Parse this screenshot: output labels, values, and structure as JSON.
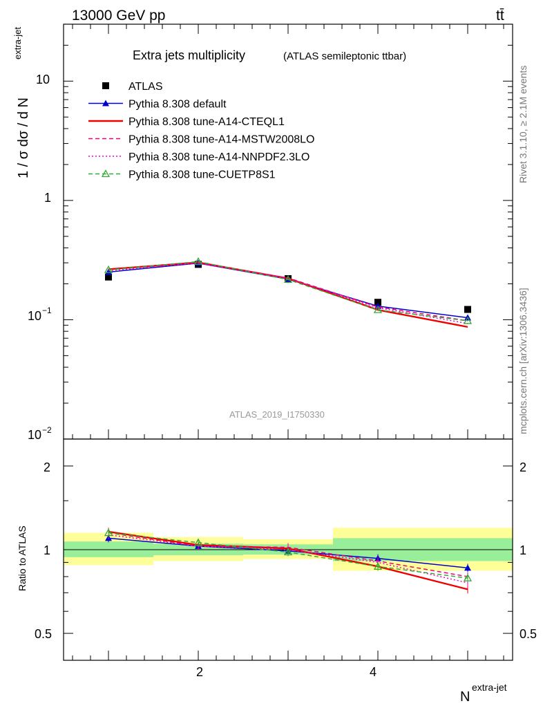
{
  "header": {
    "energy": "13000 GeV pp",
    "process": "tt̄"
  },
  "title": {
    "main": "Extra jets multiplicity",
    "sub": "(ATLAS semileptonic ttbar)"
  },
  "side_labels": {
    "rivet": "Rivet 3.1.10, ≥ 2.1M events",
    "mcplots": "mcplots.cern.ch [arXiv:1306.3436]"
  },
  "watermark": "ATLAS_2019_I1750330",
  "axes": {
    "top_ylabel_base": "1 / σ dσ / d N",
    "top_ylabel_sup": "extra-jet",
    "ratio_ylabel": "Ratio to ATLAS",
    "xlabel_base": "N",
    "xlabel_sup": "extra-jet",
    "top_ticks": [
      "10",
      "1",
      "10",
      "10"
    ],
    "top_tick_sups": [
      "−1",
      "−2"
    ],
    "ratio_ticks": [
      "2",
      "1",
      "0.5"
    ],
    "x_ticks": [
      "2",
      "4"
    ]
  },
  "chart_data": [
    {
      "type": "line",
      "panel": "main",
      "x": [
        1,
        2,
        3,
        4,
        5
      ],
      "yscale": "log",
      "xlim": [
        0.5,
        5.5
      ],
      "ylim": [
        0.01,
        30
      ],
      "series": [
        {
          "name": "ATLAS",
          "style": "marker-square",
          "color": "#000000",
          "values": [
            0.228,
            0.291,
            0.221,
            0.14,
            0.122
          ]
        },
        {
          "name": "Pythia 8.308 default",
          "style": "solid-triangle",
          "color": "#0000cc",
          "values": [
            0.251,
            0.298,
            0.219,
            0.13,
            0.104
          ]
        },
        {
          "name": "Pythia 8.308 tune-A14-CTEQL1",
          "style": "solid-thick",
          "color": "#ee0000",
          "values": [
            0.265,
            0.302,
            0.222,
            0.121,
            0.087
          ]
        },
        {
          "name": "Pythia 8.308 tune-A14-MSTW2008LO",
          "style": "dashed",
          "color": "#ee0077",
          "values": [
            0.262,
            0.3,
            0.224,
            0.128,
            0.098
          ]
        },
        {
          "name": "Pythia 8.308 tune-A14-NNPDF2.3LO",
          "style": "dotted",
          "color": "#ee00cc",
          "values": [
            0.258,
            0.299,
            0.221,
            0.126,
            0.093
          ]
        },
        {
          "name": "Pythia 8.308 tune-CUETP8S1",
          "style": "dashed-open-triangle",
          "color": "#33aa33",
          "values": [
            0.262,
            0.307,
            0.217,
            0.121,
            0.098
          ]
        }
      ]
    },
    {
      "type": "line",
      "panel": "ratio",
      "x": [
        1,
        2,
        3,
        4,
        5
      ],
      "yscale": "log",
      "xlim": [
        0.5,
        5.5
      ],
      "ylim": [
        0.4,
        2.5
      ],
      "bands": [
        {
          "x0": 0.5,
          "x1": 1.5,
          "green": [
            0.94,
            1.07
          ],
          "yellow": [
            0.88,
            1.15
          ]
        },
        {
          "x0": 1.5,
          "x1": 2.5,
          "green": [
            0.955,
            1.05
          ],
          "yellow": [
            0.91,
            1.11
          ]
        },
        {
          "x0": 2.5,
          "x1": 3.5,
          "green": [
            0.96,
            1.045
          ],
          "yellow": [
            0.925,
            1.09
          ]
        },
        {
          "x0": 3.5,
          "x1": 5.5,
          "green": [
            0.91,
            1.1
          ],
          "yellow": [
            0.84,
            1.2
          ]
        }
      ],
      "series": [
        {
          "name": "Pythia 8.308 default",
          "values": [
            1.1,
            1.03,
            0.99,
            0.93,
            0.86
          ]
        },
        {
          "name": "Pythia 8.308 tune-A14-CTEQL1",
          "values": [
            1.16,
            1.04,
            1.01,
            0.87,
            0.72
          ]
        },
        {
          "name": "Pythia 8.308 tune-A14-MSTW2008LO",
          "values": [
            1.15,
            1.03,
            1.02,
            0.91,
            0.8
          ]
        },
        {
          "name": "Pythia 8.308 tune-A14-NNPDF2.3LO",
          "values": [
            1.13,
            1.03,
            1.0,
            0.9,
            0.76
          ]
        },
        {
          "name": "Pythia 8.308 tune-CUETP8S1",
          "values": [
            1.15,
            1.06,
            0.98,
            0.87,
            0.79
          ]
        }
      ]
    }
  ]
}
